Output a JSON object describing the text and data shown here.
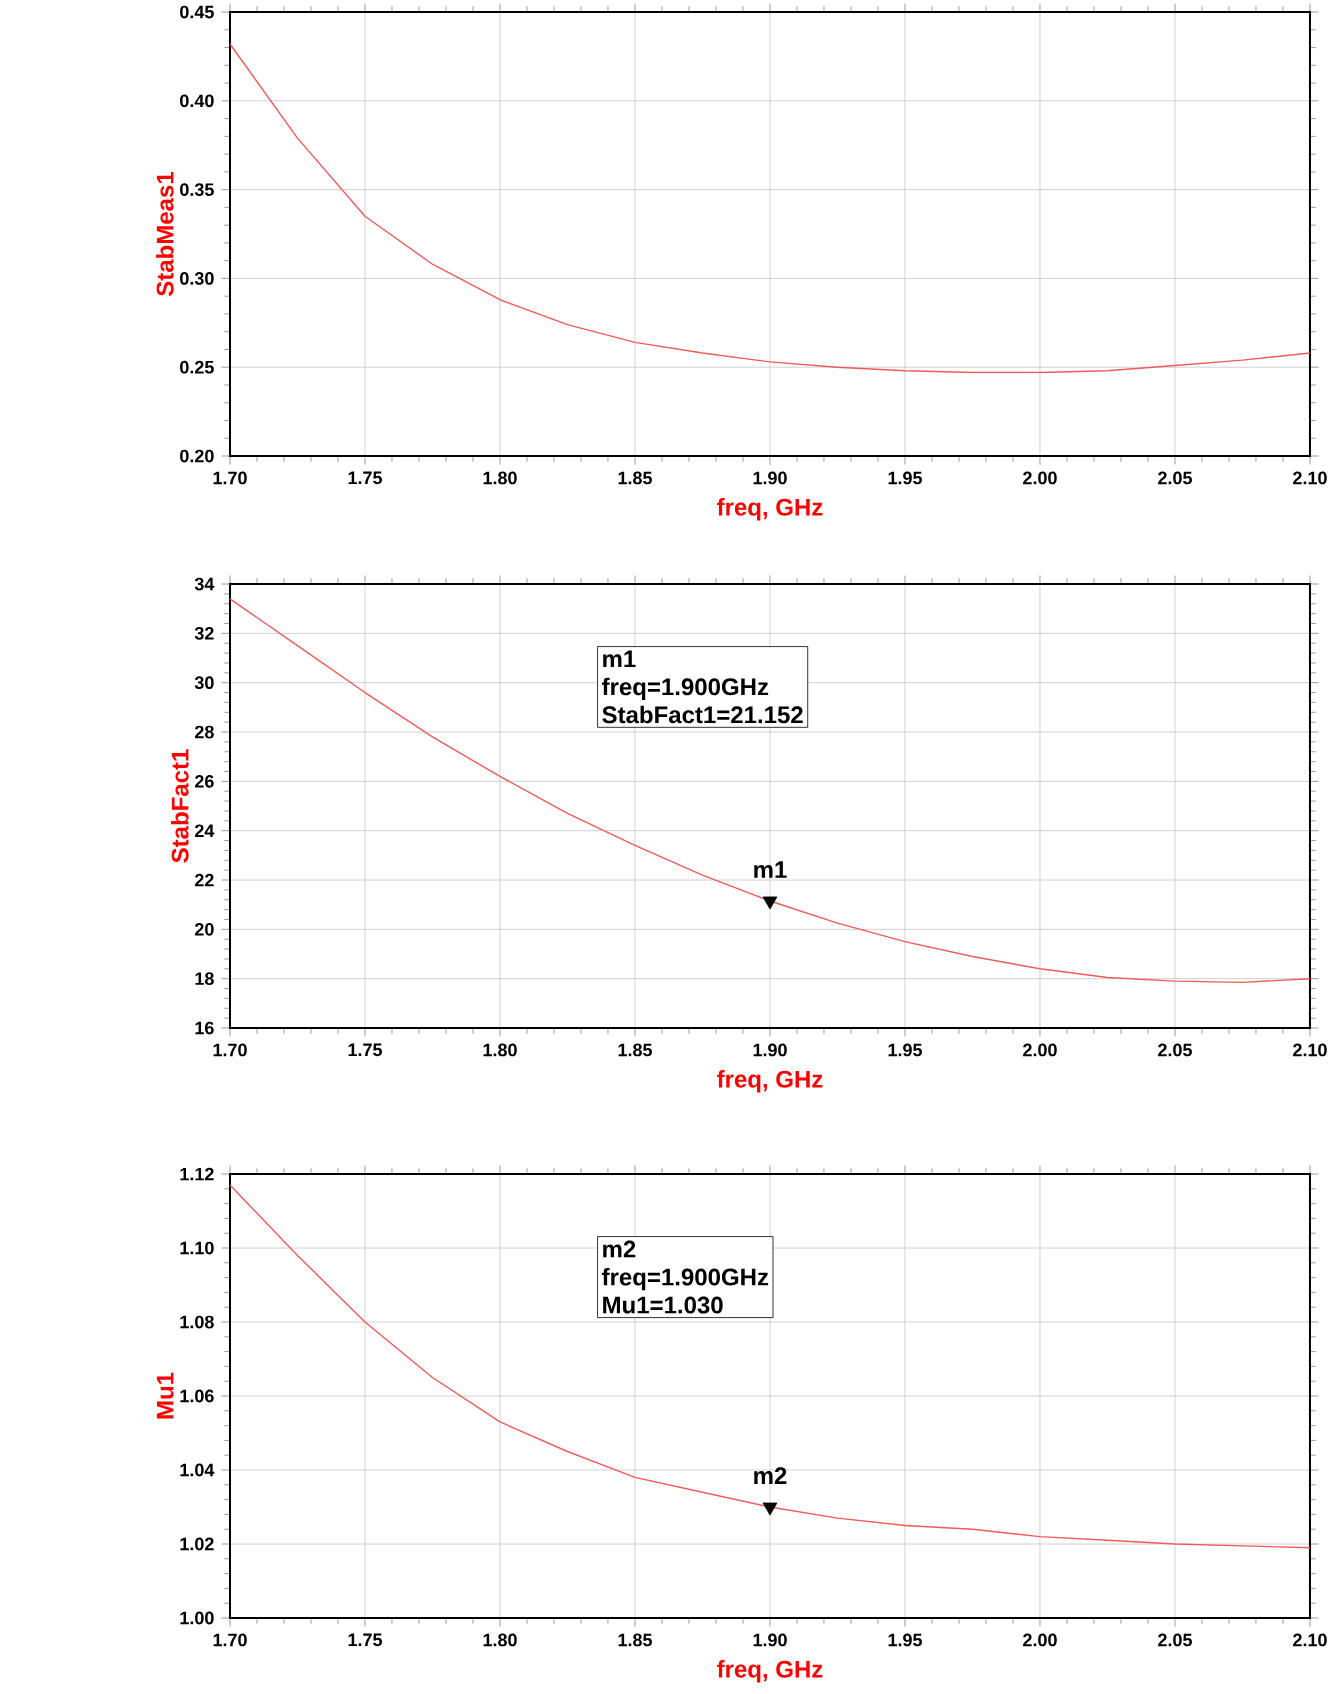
{
  "chart_data": [
    {
      "type": "line",
      "xlabel": "freq, GHz",
      "ylabel": "StabMeas1",
      "grid": true,
      "x": [
        1.7,
        1.725,
        1.75,
        1.775,
        1.8,
        1.825,
        1.85,
        1.875,
        1.9,
        1.925,
        1.95,
        1.975,
        2.0,
        2.025,
        2.05,
        2.075,
        2.1
      ],
      "series": [
        {
          "color": "#f05a5a",
          "values": [
            0.432,
            0.379,
            0.335,
            0.308,
            0.288,
            0.274,
            0.264,
            0.258,
            0.253,
            0.25,
            0.248,
            0.247,
            0.247,
            0.248,
            0.251,
            0.254,
            0.258
          ]
        }
      ],
      "xlim": [
        1.7,
        2.1
      ],
      "ylim": [
        0.2,
        0.45
      ],
      "xticks": [
        {
          "value": 1.7,
          "label": "1.70"
        },
        {
          "value": 1.75,
          "label": "1.75"
        },
        {
          "value": 1.8,
          "label": "1.80"
        },
        {
          "value": 1.85,
          "label": "1.85"
        },
        {
          "value": 1.9,
          "label": "1.90"
        },
        {
          "value": 1.95,
          "label": "1.95"
        },
        {
          "value": 2.0,
          "label": "2.00"
        },
        {
          "value": 2.05,
          "label": "2.05"
        },
        {
          "value": 2.1,
          "label": "2.10"
        }
      ],
      "yticks": [
        {
          "value": 0.2,
          "label": "0.20"
        },
        {
          "value": 0.25,
          "label": "0.25"
        },
        {
          "value": 0.3,
          "label": "0.30"
        },
        {
          "value": 0.35,
          "label": "0.35"
        },
        {
          "value": 0.4,
          "label": "0.40"
        },
        {
          "value": 0.45,
          "label": "0.45"
        }
      ]
    },
    {
      "type": "line",
      "xlabel": "freq, GHz",
      "ylabel": "StabFact1",
      "grid": true,
      "x": [
        1.7,
        1.725,
        1.75,
        1.775,
        1.8,
        1.825,
        1.85,
        1.875,
        1.9,
        1.925,
        1.95,
        1.975,
        2.0,
        2.025,
        2.05,
        2.075,
        2.1
      ],
      "series": [
        {
          "color": "#f05a5a",
          "values": [
            33.4,
            31.5,
            29.6,
            27.8,
            26.2,
            24.7,
            23.4,
            22.2,
            21.15,
            20.25,
            19.5,
            18.9,
            18.4,
            18.05,
            17.9,
            17.85,
            18.0
          ]
        }
      ],
      "xlim": [
        1.7,
        2.1
      ],
      "ylim": [
        16,
        34
      ],
      "xticks": [
        {
          "value": 1.7,
          "label": "1.70"
        },
        {
          "value": 1.75,
          "label": "1.75"
        },
        {
          "value": 1.8,
          "label": "1.80"
        },
        {
          "value": 1.85,
          "label": "1.85"
        },
        {
          "value": 1.9,
          "label": "1.90"
        },
        {
          "value": 1.95,
          "label": "1.95"
        },
        {
          "value": 2.0,
          "label": "2.00"
        },
        {
          "value": 2.05,
          "label": "2.05"
        },
        {
          "value": 2.1,
          "label": "2.10"
        }
      ],
      "yticks": [
        16,
        18,
        20,
        22,
        24,
        26,
        28,
        30,
        32,
        34
      ],
      "annotations": [
        {
          "text": "m1",
          "x": 1.9,
          "y": 21.152
        },
        "m1",
        "freq=1.900GHz",
        "StabFact1=21.152"
      ]
    },
    {
      "type": "line",
      "xlabel": "freq, GHz",
      "ylabel": "Mu1",
      "grid": true,
      "x": [
        1.7,
        1.725,
        1.75,
        1.775,
        1.8,
        1.825,
        1.85,
        1.875,
        1.9,
        1.925,
        1.95,
        1.975,
        2.0,
        2.025,
        2.05,
        2.075,
        2.1
      ],
      "series": [
        {
          "color": "#f05a5a",
          "values": [
            1.117,
            1.098,
            1.08,
            1.065,
            1.053,
            1.045,
            1.038,
            1.034,
            1.03,
            1.027,
            1.025,
            1.024,
            1.022,
            1.021,
            1.02,
            1.0195,
            1.019
          ]
        }
      ],
      "xlim": [
        1.7,
        2.1
      ],
      "ylim": [
        1.0,
        1.12
      ],
      "xticks": [
        {
          "value": 1.7,
          "label": "1.70"
        },
        {
          "value": 1.75,
          "label": "1.75"
        },
        {
          "value": 1.8,
          "label": "1.80"
        },
        {
          "value": 1.85,
          "label": "1.85"
        },
        {
          "value": 1.9,
          "label": "1.90"
        },
        {
          "value": 1.95,
          "label": "1.95"
        },
        {
          "value": 2.0,
          "label": "2.00"
        },
        {
          "value": 2.05,
          "label": "2.05"
        },
        {
          "value": 2.1,
          "label": "2.10"
        }
      ],
      "yticks": [
        {
          "value": 1.0,
          "label": "1.00"
        },
        {
          "value": 1.02,
          "label": "1.02"
        },
        {
          "value": 1.04,
          "label": "1.04"
        },
        {
          "value": 1.06,
          "label": "1.06"
        },
        {
          "value": 1.08,
          "label": "1.08"
        },
        {
          "value": 1.1,
          "label": "1.10"
        },
        {
          "value": 1.12,
          "label": "1.12"
        }
      ],
      "annotations": [
        {
          "text": "m2",
          "x": 1.9,
          "y": 1.03
        },
        "m2",
        "freq=1.900GHz",
        "Mu1=1.030"
      ]
    }
  ]
}
